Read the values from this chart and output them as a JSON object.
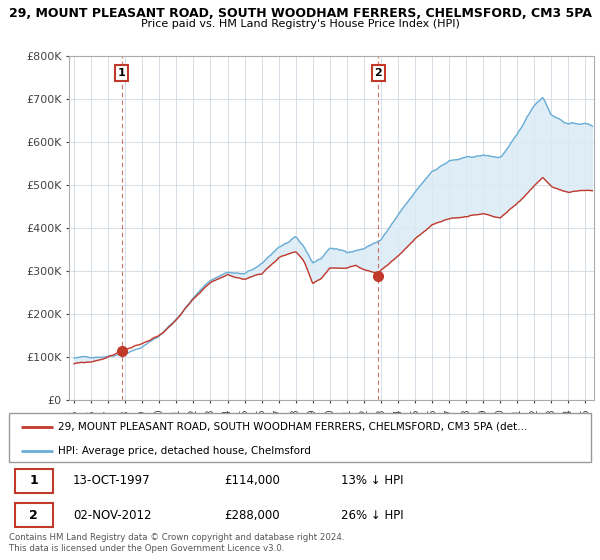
{
  "title1": "29, MOUNT PLEASANT ROAD, SOUTH WOODHAM FERRERS, CHELMSFORD, CM3 5PA",
  "title2": "Price paid vs. HM Land Registry's House Price Index (HPI)",
  "ylim": [
    0,
    800000
  ],
  "yticks": [
    0,
    100000,
    200000,
    300000,
    400000,
    500000,
    600000,
    700000,
    800000
  ],
  "ytick_labels": [
    "£0",
    "£100K",
    "£200K",
    "£300K",
    "£400K",
    "£500K",
    "£600K",
    "£700K",
    "£800K"
  ],
  "hpi_color": "#6aaed6",
  "price_color": "#c0392b",
  "fill_color": "#daeaf5",
  "marker1_year": 1997.79,
  "marker1_price": 114000,
  "marker2_year": 2012.84,
  "marker2_price": 288000,
  "legend_line1": "29, MOUNT PLEASANT ROAD, SOUTH WOODHAM FERRERS, CHELMSFORD, CM3 5PA (det…",
  "legend_line2": "HPI: Average price, detached house, Chelmsford",
  "table_row1": [
    "1",
    "13-OCT-1997",
    "£114,000",
    "13% ↓ HPI"
  ],
  "table_row2": [
    "2",
    "02-NOV-2012",
    "£288,000",
    "26% ↓ HPI"
  ],
  "footer": "Contains HM Land Registry data © Crown copyright and database right 2024.\nThis data is licensed under the Open Government Licence v3.0.",
  "grid_color": "#d0d8e0",
  "spine_color": "#aaaaaa"
}
